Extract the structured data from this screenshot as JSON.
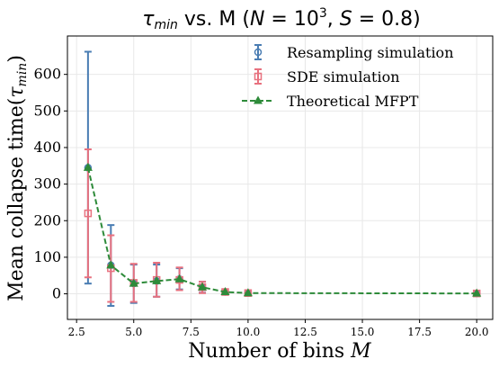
{
  "chart_data": {
    "type": "line",
    "title": "τ_min vs. M (N = 10³, S = 0.8)",
    "title_parts": {
      "tau": "τ",
      "tau_sub": "min",
      "mid": " vs. M (",
      "n": "N",
      "n_eq": " = 10",
      "n_exp": "3",
      "sep": ", ",
      "s": "S",
      "s_val": " = 0.8",
      "close": ")"
    },
    "xlabel": "Number of bins M",
    "xlabel_parts": {
      "text": "Number of bins ",
      "var": "M"
    },
    "ylabel": "Mean collapse time(τ_min)",
    "ylabel_parts": {
      "text": "Mean collapse time(",
      "tau": "τ",
      "sub": "min",
      "close": ")"
    },
    "xlim": [
      2.1,
      20.7
    ],
    "ylim": [
      -70,
      705
    ],
    "xticks": [
      2.5,
      5.0,
      7.5,
      10.0,
      12.5,
      15.0,
      17.5,
      20.0
    ],
    "xtick_labels": [
      "2.5",
      "5.0",
      "7.5",
      "10.0",
      "12.5",
      "15.0",
      "17.5",
      "20.0"
    ],
    "yticks": [
      0,
      100,
      200,
      300,
      400,
      500,
      600
    ],
    "ytick_labels": [
      "0",
      "100",
      "200",
      "300",
      "400",
      "500",
      "600"
    ],
    "grid": true,
    "legend_position": "top-right",
    "series": [
      {
        "name": "Resampling simulation",
        "color": "#4a7db3",
        "marker": "circle",
        "x": [
          3,
          4,
          5,
          6,
          7,
          8,
          9,
          10,
          20
        ],
        "y": [
          345,
          78,
          28,
          35,
          40,
          18,
          5,
          2,
          1
        ],
        "err_low": [
          28,
          -33,
          -25,
          -8,
          12,
          3,
          0,
          0,
          0
        ],
        "err_high": [
          662,
          188,
          80,
          80,
          70,
          33,
          10,
          5,
          3
        ]
      },
      {
        "name": "SDE simulation",
        "color": "#e8717f",
        "marker": "square",
        "x": [
          3,
          4,
          5,
          6,
          7,
          8,
          9,
          10,
          20
        ],
        "y": [
          220,
          70,
          30,
          38,
          38,
          18,
          5,
          2,
          1
        ],
        "err_low": [
          45,
          -22,
          -22,
          -8,
          10,
          2,
          0,
          0,
          0
        ],
        "err_high": [
          395,
          160,
          82,
          85,
          72,
          33,
          10,
          5,
          3
        ]
      },
      {
        "name": "Theoretical MFPT",
        "color": "#2e8b3a",
        "marker": "triangle",
        "dashed": true,
        "x": [
          3,
          4,
          5,
          6,
          7,
          8,
          9,
          10,
          20
        ],
        "y": [
          345,
          78,
          28,
          35,
          40,
          18,
          5,
          2,
          1
        ]
      }
    ]
  }
}
